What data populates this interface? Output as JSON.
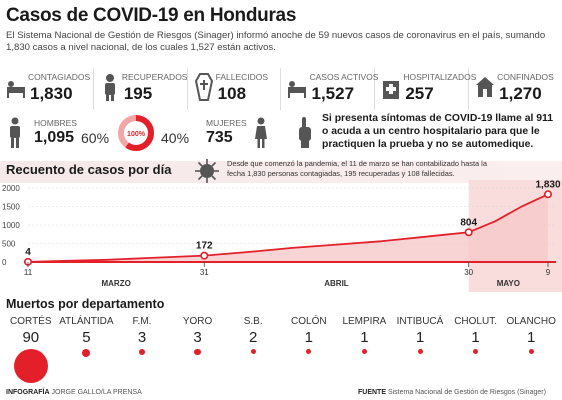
{
  "header": {
    "title": "Casos de COVID-19 en Honduras",
    "intro": "El Sistema Nacional de Gestión de Riesgos (Sinager) informó anoche de 59 nuevos casos de coronavirus en el país, sumando 1,830 casos a nivel nacional, de los cuales 1,527 están activos."
  },
  "stats": [
    {
      "label": "CONTAGIADOS",
      "value": "1,830",
      "icon": "patient-bed-icon"
    },
    {
      "label": "RECUPERADOS",
      "value": "195",
      "icon": "recovered-person-icon"
    },
    {
      "label": "FALLECIDOS",
      "value": "108",
      "icon": "coffin-icon"
    },
    {
      "label": "CASOS ACTIVOS",
      "value": "1,527",
      "icon": "patient-bed-icon"
    },
    {
      "label": "HOSPITALIZADOS",
      "value": "257",
      "icon": "hospital-icon"
    },
    {
      "label": "CONFINADOS",
      "value": "1,270",
      "icon": "house-icon"
    }
  ],
  "gender": {
    "men_label": "HOMBRES",
    "men_value": "1,095",
    "men_pct": "60%",
    "donut_label": "100%",
    "women_pct": "40%",
    "women_label": "MUJERES",
    "women_value": "735",
    "men_fraction": 0.6
  },
  "alert": "Si presenta síntomas de COVID-19 llame al 911 o acuda a un centro hospitalario para que le practiquen la prueba y no se automedique.",
  "chart_section": {
    "subtitle": "Recuento de casos por día",
    "note": "Desde que comenzó la pandemia, el 11 de marzo se han contabilizado hasta la fecha 1,830 personas contagiadas, 195 recuperadas y 108 fallecidas."
  },
  "chart_data": {
    "type": "area",
    "ylim": [
      0,
      2000
    ],
    "yticks": [
      "2000",
      "1500",
      "1000",
      "500",
      "0"
    ],
    "x_tick_labels": [
      "11",
      "31",
      "30",
      "9"
    ],
    "months": [
      "MARZO",
      "ABRIL",
      "MAYO"
    ],
    "points": [
      {
        "date": "2020-03-11",
        "value": 4,
        "label": "4"
      },
      {
        "date": "2020-03-31",
        "value": 172,
        "label": "172"
      },
      {
        "date": "2020-04-30",
        "value": 804,
        "label": "804"
      },
      {
        "date": "2020-05-09",
        "value": 1830,
        "label": "1,830"
      }
    ],
    "series": [
      {
        "dates": [
          "2020-03-11",
          "2020-03-15",
          "2020-03-20",
          "2020-03-25",
          "2020-03-31",
          "2020-04-05",
          "2020-04-10",
          "2020-04-15",
          "2020-04-20",
          "2020-04-25",
          "2020-04-30",
          "2020-05-03",
          "2020-05-06",
          "2020-05-09"
        ],
        "values": [
          4,
          30,
          60,
          110,
          172,
          270,
          380,
          470,
          560,
          680,
          804,
          1100,
          1500,
          1830
        ]
      }
    ],
    "colors": {
      "line": "#e3202a",
      "fill": "#f6c9c9",
      "highlight": "#f9dcdc"
    }
  },
  "departments": {
    "title": "Muertos por departamento",
    "items": [
      {
        "name": "CORTÉS",
        "value": "90",
        "count": 90
      },
      {
        "name": "ATLÁNTIDA",
        "value": "5",
        "count": 5
      },
      {
        "name": "F.M.",
        "value": "3",
        "count": 3
      },
      {
        "name": "YORO",
        "value": "3",
        "count": 3
      },
      {
        "name": "S.B.",
        "value": "2",
        "count": 2
      },
      {
        "name": "COLÓN",
        "value": "1",
        "count": 1
      },
      {
        "name": "LEMPIRA",
        "value": "1",
        "count": 1
      },
      {
        "name": "INTIBUCÁ",
        "value": "1",
        "count": 1
      },
      {
        "name": "CHOLUT.",
        "value": "1",
        "count": 1
      },
      {
        "name": "OLANCHO",
        "value": "1",
        "count": 1
      }
    ]
  },
  "footer": {
    "credit_label": "INFOGRAFÍA",
    "credit_value": "JORGE GALLO/LA PRENSA",
    "source_label": "FUENTE",
    "source_value": "Sistema Nacional de Gestión de Riesgos (Sinager)"
  }
}
